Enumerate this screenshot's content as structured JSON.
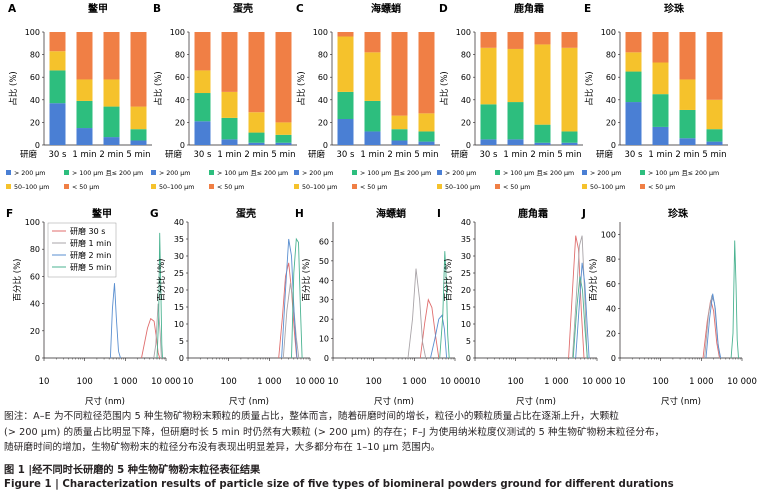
{
  "colors": {
    "gt200": "#4a7fd4",
    "gt100": "#2dbe7e",
    "b50_100": "#f5c22c",
    "lt50": "#f07f45",
    "t30s": "#e06e6e",
    "t1min": "#a9a4a8",
    "t2min": "#5a8fd0",
    "t5min": "#4bb391"
  },
  "legend_bar": [
    {
      "key": "gt200",
      "label": "> 200 μm"
    },
    {
      "key": "gt100",
      "label": "> 100 μm 且≤ 200 μm"
    },
    {
      "key": "b50_100",
      "label": "50–100 μm"
    },
    {
      "key": "lt50",
      "label": "< 50 μm"
    }
  ],
  "legend_line": {
    "entries": [
      {
        "key": "t30s",
        "label": "研磨 30 s"
      },
      {
        "key": "t1min",
        "label": "研磨 1 min"
      },
      {
        "key": "t2min",
        "label": "研磨 2 min"
      },
      {
        "key": "t5min",
        "label": "研磨 5 min"
      }
    ]
  },
  "bar_x_prefix": "研磨",
  "chart_data": [
    {
      "type": "bar",
      "letter": "A",
      "title": "鳖甲",
      "ylabel": "占比 (%)",
      "ylim": [
        0,
        100
      ],
      "yticks": [
        0,
        20,
        40,
        60,
        80,
        100
      ],
      "categories": [
        "30 s",
        "1 min",
        "2 min",
        "5 min"
      ],
      "series": [
        {
          "name": "> 200 μm",
          "key": "gt200",
          "values": [
            37,
            15,
            7,
            4
          ]
        },
        {
          "name": "> 100 μm 且≤ 200 μm",
          "key": "gt100",
          "values": [
            29,
            24,
            27,
            10
          ]
        },
        {
          "name": "50–100 μm",
          "key": "b50_100",
          "values": [
            17,
            19,
            24,
            20
          ]
        },
        {
          "name": "< 50 μm",
          "key": "lt50",
          "values": [
            17,
            42,
            42,
            66
          ]
        }
      ]
    },
    {
      "type": "bar",
      "letter": "B",
      "title": "蛋壳",
      "ylabel": "占比 (%)",
      "ylim": [
        0,
        100
      ],
      "yticks": [
        0,
        20,
        40,
        60,
        80,
        100
      ],
      "categories": [
        "30 s",
        "1 min",
        "2 min",
        "5 min"
      ],
      "series": [
        {
          "name": "> 200 μm",
          "key": "gt200",
          "values": [
            21,
            5,
            2,
            2
          ]
        },
        {
          "name": "> 100 μm 且≤ 200 μm",
          "key": "gt100",
          "values": [
            25,
            19,
            9,
            7
          ]
        },
        {
          "name": "50–100 μm",
          "key": "b50_100",
          "values": [
            20,
            23,
            18,
            11
          ]
        },
        {
          "name": "< 50 μm",
          "key": "lt50",
          "values": [
            34,
            53,
            71,
            80
          ]
        }
      ]
    },
    {
      "type": "bar",
      "letter": "C",
      "title": "海螵蛸",
      "ylabel": "占比 (%)",
      "ylim": [
        0,
        100
      ],
      "yticks": [
        0,
        20,
        40,
        60,
        80,
        100
      ],
      "categories": [
        "30 s",
        "1 min",
        "2 min",
        "5 min"
      ],
      "series": [
        {
          "name": "> 200 μm",
          "key": "gt200",
          "values": [
            23,
            12,
            4,
            3
          ]
        },
        {
          "name": "> 100 μm 且≤ 200 μm",
          "key": "gt100",
          "values": [
            24,
            27,
            10,
            9
          ]
        },
        {
          "name": "50–100 μm",
          "key": "b50_100",
          "values": [
            49,
            43,
            12,
            16
          ]
        },
        {
          "name": "< 50 μm",
          "key": "lt50",
          "values": [
            4,
            18,
            74,
            72
          ]
        }
      ]
    },
    {
      "type": "bar",
      "letter": "D",
      "title": "鹿角霜",
      "ylabel": "占比 (%)",
      "ylim": [
        0,
        100
      ],
      "yticks": [
        0,
        20,
        40,
        60,
        80,
        100
      ],
      "categories": [
        "30 s",
        "1 min",
        "2 min",
        "5 min"
      ],
      "series": [
        {
          "name": "> 200 μm",
          "key": "gt200",
          "values": [
            5,
            5,
            2,
            2
          ]
        },
        {
          "name": "> 100 μm 且≤ 200 μm",
          "key": "gt100",
          "values": [
            31,
            33,
            16,
            10
          ]
        },
        {
          "name": "50–100 μm",
          "key": "b50_100",
          "values": [
            50,
            47,
            71,
            74
          ]
        },
        {
          "name": "< 50 μm",
          "key": "lt50",
          "values": [
            14,
            15,
            11,
            14
          ]
        }
      ]
    },
    {
      "type": "bar",
      "letter": "E",
      "title": "珍珠",
      "ylabel": "占比 (%)",
      "ylim": [
        0,
        100
      ],
      "yticks": [
        0,
        20,
        40,
        60,
        80,
        100
      ],
      "categories": [
        "30 s",
        "1 min",
        "2 min",
        "5 min"
      ],
      "series": [
        {
          "name": "> 200 μm",
          "key": "gt200",
          "values": [
            38,
            16,
            6,
            3
          ]
        },
        {
          "name": "> 100 μm 且≤ 200 μm",
          "key": "gt100",
          "values": [
            27,
            29,
            25,
            11
          ]
        },
        {
          "name": "50–100 μm",
          "key": "b50_100",
          "values": [
            17,
            28,
            27,
            26
          ]
        },
        {
          "name": "< 50 μm",
          "key": "lt50",
          "values": [
            18,
            27,
            42,
            60
          ]
        }
      ]
    },
    {
      "type": "line",
      "letter": "F",
      "title": "鳖甲",
      "xlabel": "尺寸 (nm)",
      "ylabel": "百分比 (%)",
      "xscale": "log",
      "xlim": [
        10,
        10000
      ],
      "ylim": [
        0,
        100
      ],
      "yticks": [
        0,
        20,
        40,
        60,
        80,
        100
      ],
      "series": [
        {
          "name": "研磨 30 s",
          "key": "t30s",
          "x": [
            2500,
            3500,
            4200,
            5100,
            5800,
            6400,
            7000
          ],
          "y": [
            0,
            22,
            29,
            27,
            15,
            4,
            0
          ]
        },
        {
          "name": "研磨 1 min",
          "key": "t1min",
          "x": [
            5000,
            5600,
            6400,
            7200,
            7700
          ],
          "y": [
            0,
            10,
            40,
            18,
            0
          ]
        },
        {
          "name": "研磨 2 min",
          "key": "t2min",
          "x": [
            430,
            480,
            540,
            600,
            680,
            760
          ],
          "y": [
            0,
            36,
            55,
            30,
            5,
            0
          ]
        },
        {
          "name": "研磨 5 min",
          "key": "t5min",
          "x": [
            6000,
            6600,
            7000,
            7500,
            7900,
            8200
          ],
          "y": [
            0,
            30,
            92,
            48,
            10,
            0
          ]
        }
      ]
    },
    {
      "type": "line",
      "letter": "G",
      "title": "蛋壳",
      "xlabel": "尺寸 (nm)",
      "ylabel": "百分比 (%)",
      "xscale": "log",
      "xlim": [
        10,
        10000
      ],
      "ylim": [
        0,
        40
      ],
      "yticks": [
        0,
        5,
        10,
        15,
        20,
        25,
        30,
        35,
        40
      ],
      "series": [
        {
          "name": "研磨 30 s",
          "key": "t30s",
          "x": [
            1700,
            2100,
            2500,
            3000,
            3500,
            4100,
            4700
          ],
          "y": [
            0,
            12,
            24,
            28,
            20,
            8,
            0
          ]
        },
        {
          "name": "研磨 1 min",
          "key": "t1min",
          "x": [
            2200,
            2700,
            3300,
            3900,
            4600,
            5300
          ],
          "y": [
            0,
            14,
            22,
            16,
            6,
            0
          ]
        },
        {
          "name": "研磨 2 min",
          "key": "t2min",
          "x": [
            2000,
            2500,
            3000,
            3500,
            4100,
            4800
          ],
          "y": [
            0,
            20,
            35,
            30,
            12,
            0
          ]
        },
        {
          "name": "研磨 5 min",
          "key": "t5min",
          "x": [
            3500,
            4000,
            4600,
            5200,
            5800,
            6400
          ],
          "y": [
            0,
            25,
            35,
            34,
            15,
            0
          ]
        }
      ]
    },
    {
      "type": "line",
      "letter": "H",
      "title": "海螵蛸",
      "xlabel": "尺寸 (nm)",
      "ylabel": "百分比 (%)",
      "xscale": "log",
      "xlim": [
        10,
        10000
      ],
      "ylim": [
        0,
        70
      ],
      "yticks": [
        0,
        10,
        20,
        30,
        40,
        50,
        60
      ],
      "series": [
        {
          "name": "研磨 30 s",
          "key": "t30s",
          "x": [
            1400,
            1800,
            2200,
            2700,
            3300,
            4000
          ],
          "y": [
            0,
            18,
            30,
            26,
            12,
            0
          ]
        },
        {
          "name": "研磨 1 min",
          "key": "t1min",
          "x": [
            700,
            900,
            1100,
            1350,
            1600,
            1900
          ],
          "y": [
            0,
            20,
            46,
            30,
            8,
            0
          ]
        },
        {
          "name": "研磨 2 min",
          "key": "t2min",
          "x": [
            2500,
            3200,
            4000,
            4800,
            5500,
            6200
          ],
          "y": [
            0,
            10,
            20,
            22,
            15,
            0
          ]
        },
        {
          "name": "研磨 5 min",
          "key": "t5min",
          "x": [
            4200,
            5000,
            5600,
            6100,
            6600,
            7200
          ],
          "y": [
            0,
            22,
            55,
            40,
            12,
            0
          ]
        }
      ]
    },
    {
      "type": "line",
      "letter": "I",
      "title": "鹿角霜",
      "xlabel": "尺寸 (nm)",
      "ylabel": "百分比 (%)",
      "xscale": "log",
      "xlim": [
        10,
        10000
      ],
      "ylim": [
        0,
        40
      ],
      "yticks": [
        0,
        5,
        10,
        15,
        20,
        25,
        30,
        35,
        40
      ],
      "series": [
        {
          "name": "研磨 30 s",
          "key": "t30s",
          "x": [
            2000,
            2500,
            3000,
            3500,
            4100,
            4800
          ],
          "y": [
            0,
            20,
            36,
            32,
            14,
            0
          ]
        },
        {
          "name": "研磨 1 min",
          "key": "t1min",
          "x": [
            2500,
            3100,
            3700,
            4300,
            5000,
            5700
          ],
          "y": [
            0,
            18,
            33,
            36,
            18,
            0
          ]
        },
        {
          "name": "研磨 2 min",
          "key": "t2min",
          "x": [
            3000,
            3700,
            4300,
            5000,
            5700,
            6400
          ],
          "y": [
            0,
            16,
            28,
            22,
            10,
            0
          ]
        },
        {
          "name": "研磨 5 min",
          "key": "t5min",
          "x": [
            2600,
            3200,
            3800,
            4400,
            5100,
            5800
          ],
          "y": [
            0,
            15,
            24,
            20,
            8,
            0
          ]
        }
      ]
    },
    {
      "type": "line",
      "letter": "J",
      "title": "珍珠",
      "xlabel": "尺寸 (nm)",
      "ylabel": "百分比 (%)",
      "xscale": "log",
      "xlim": [
        10,
        10000
      ],
      "ylim": [
        0,
        110
      ],
      "yticks": [
        0,
        20,
        40,
        60,
        80,
        100
      ],
      "series": [
        {
          "name": "研磨 30 s",
          "key": "t30s",
          "x": [
            1100,
            1400,
            1700,
            2000,
            2400,
            2800
          ],
          "y": [
            0,
            30,
            47,
            38,
            12,
            0
          ]
        },
        {
          "name": "研磨 1 min",
          "key": "t1min",
          "x": [
            1200,
            1500,
            1800,
            2100,
            2500,
            2900
          ],
          "y": [
            0,
            35,
            50,
            45,
            15,
            0
          ]
        },
        {
          "name": "研磨 2 min",
          "key": "t2min",
          "x": [
            1300,
            1600,
            1900,
            2200,
            2600,
            3000
          ],
          "y": [
            0,
            32,
            52,
            40,
            10,
            0
          ]
        },
        {
          "name": "研磨 5 min",
          "key": "t5min",
          "x": [
            5400,
            6000,
            6600,
            7100,
            7600,
            8200
          ],
          "y": [
            0,
            20,
            95,
            60,
            15,
            0
          ]
        }
      ]
    }
  ],
  "xtick_labels": [
    "10",
    "100",
    "1 000",
    "10 000"
  ],
  "note_lines": [
    "图注：A–E 为不同粒径范围内 5 种生物矿物粉末颗粒的质量占比，整体而言，随着研磨时间的增长，粒径小的颗粒质量占比在逐渐上升，大颗粒",
    "(> 200 μm) 的质量占比明显下降，但研磨时长 5 min 时仍然有大颗粒 (> 200 μm) 的存在；F–J 为使用纳米粒度仪测试的 5 种生物矿物粉末粒径分布，",
    "随研磨时间的增加，生物矿物粉末的粒径分布没有表现出明显差异，大多都分布在 1–10 μm 范围内。"
  ],
  "caption_cn": "图 1  |经不同时长研磨的 5 种生物矿物粉末粒径表征结果",
  "caption_en": "Figure 1  | Characterization results of particle size of five types of biomineral powders ground for different durations"
}
